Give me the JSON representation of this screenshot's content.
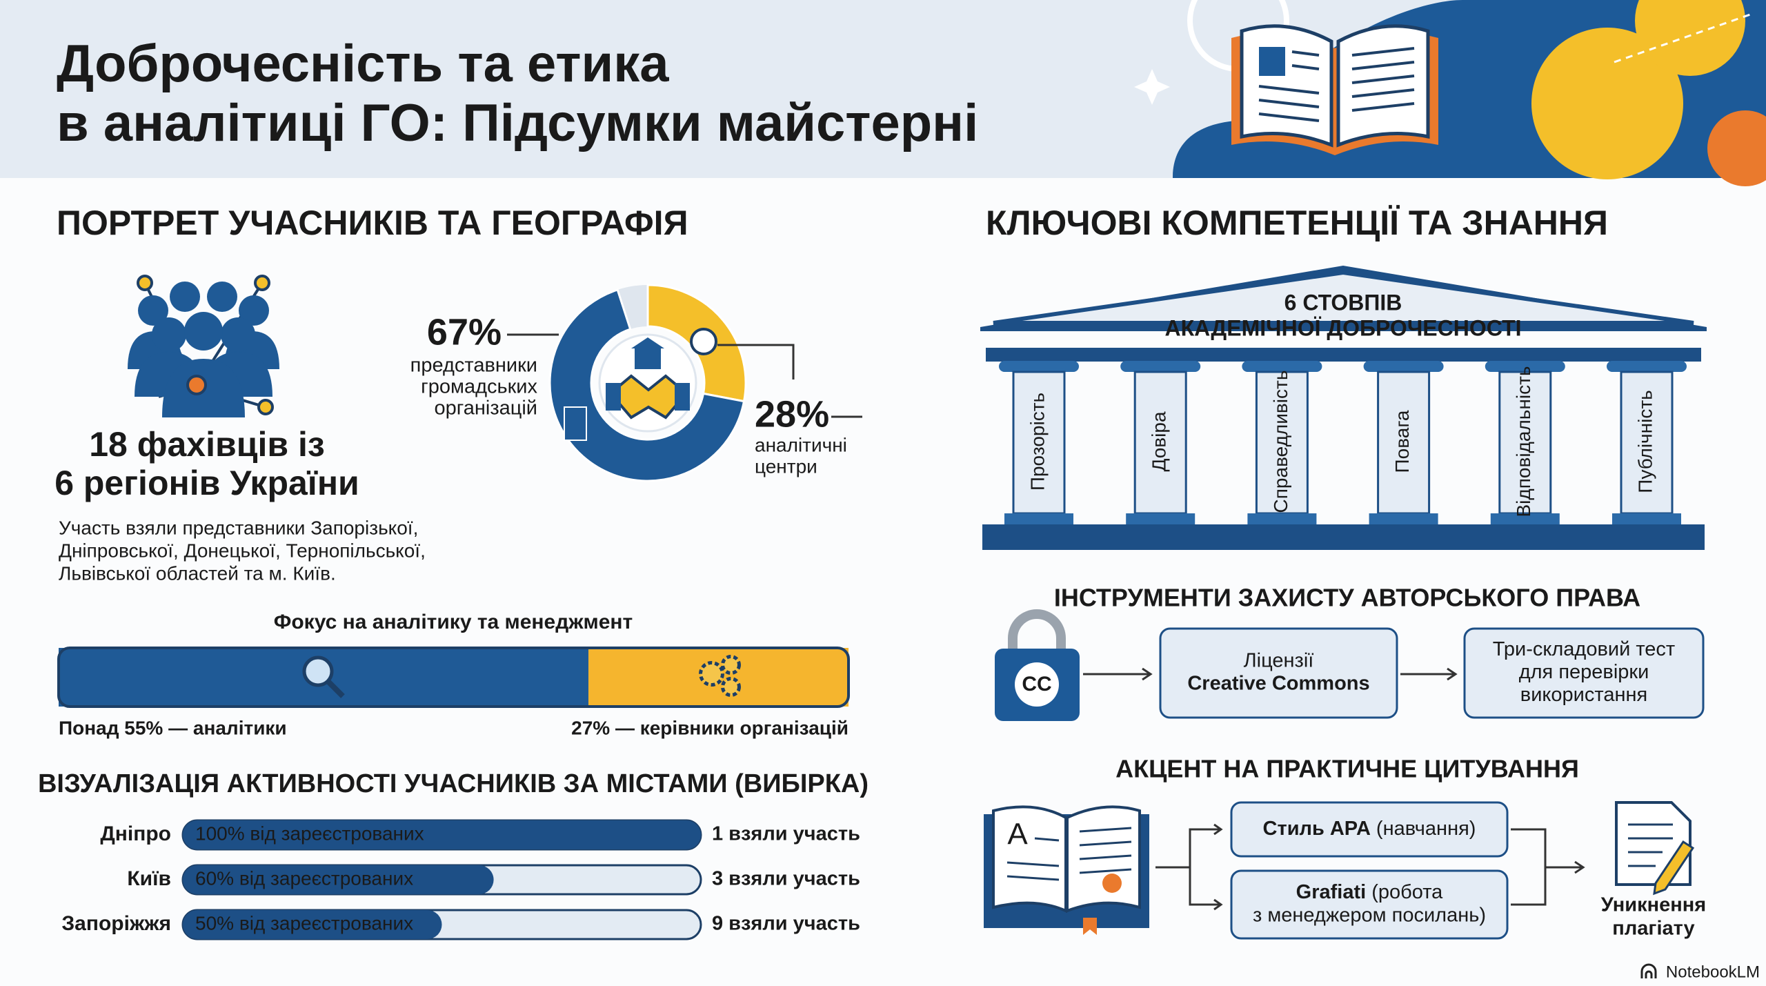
{
  "header": {
    "title_lines": [
      "Доброчесність та етика",
      "в аналітиці ГО: Підсумки майстерні"
    ]
  },
  "participants": {
    "heading": "ПОРТРЕТ УЧАСНИКІВ ТА ГЕОГРАФІЯ",
    "summary_lines": [
      "18 фахівців із",
      "6 регіонів України"
    ],
    "description_lines": [
      "Участь взяли представники Запорізької,",
      "Дніпровської, Донецької, Тернопільської,",
      "Львівської областей та м. Київ."
    ]
  },
  "composition": {
    "type": "donut",
    "segments": [
      {
        "value": 67,
        "label": "67%",
        "text_lines": [
          "представники",
          "громадських",
          "організацій"
        ],
        "color": "#1f5a96"
      },
      {
        "value": 28,
        "label": "28%",
        "text_lines": [
          "аналітичні",
          "центри"
        ],
        "color": "#f4bf2a"
      }
    ]
  },
  "focus": {
    "type": "bar",
    "title": "Фокус на аналітику та менеджмент",
    "segments": [
      {
        "value": 55,
        "label": "Понад 55% — аналітики",
        "color": "#1f5a96"
      },
      {
        "value": 27,
        "label": "27% — керівники організацій",
        "color": "#f5b52e"
      }
    ]
  },
  "cities": {
    "type": "progress",
    "title": "ВІЗУАЛІЗАЦІЯ АКТИВНОСТІ УЧАСНИКІВ ЗА МІСТАМИ (ВИБІРКА)",
    "rows": [
      {
        "name": "Дніпро",
        "share": 100,
        "share_label": "100% від зареєстрованих",
        "attended": 1,
        "attended_label": "1 взяли участь"
      },
      {
        "name": "Київ",
        "share": 60,
        "share_label": "60% від зареєстрованих",
        "attended": 3,
        "attended_label": "3 взяли участь"
      },
      {
        "name": "Запоріжжя",
        "share": 50,
        "share_label": "50% від зареєстрованих",
        "attended": 9,
        "attended_label": "9 взяли участь"
      }
    ]
  },
  "competencies": {
    "heading": "КЛЮЧОВІ КОМПЕТЕНЦІЇ ТА ЗНАННЯ",
    "pillars_title_lines": [
      "6 СТОВПІВ",
      "АКАДЕМІЧНОЇ ДОБРОЧЕСНОСТІ"
    ],
    "pillars": [
      "Прозорість",
      "Довіра",
      "Справедливість",
      "Повага",
      "Відповідальність",
      "Публічність"
    ]
  },
  "copyright": {
    "heading": "ІНСТРУМЕНТИ ЗАХИСТУ АВТОРСЬКОГО ПРАВА",
    "badge": "CC",
    "steps": [
      [
        "Ліцензії",
        "Creative Commons"
      ],
      [
        "Три-складовий тест",
        "для перевірки",
        "використання"
      ]
    ]
  },
  "citation": {
    "heading": "АКЦЕНТ НА ПРАКТИЧНЕ ЦИТУВАННЯ",
    "book_letter": "A",
    "tools": [
      {
        "name": "Стиль APA",
        "note_lines": [
          "(навчання)"
        ]
      },
      {
        "name": "Grafiati",
        "note_lines": [
          "(робота",
          "з менеджером посилань)"
        ]
      }
    ],
    "result_lines": [
      "Уникнення",
      "плагіату"
    ]
  },
  "footer": {
    "brand": "NotebookLM"
  }
}
